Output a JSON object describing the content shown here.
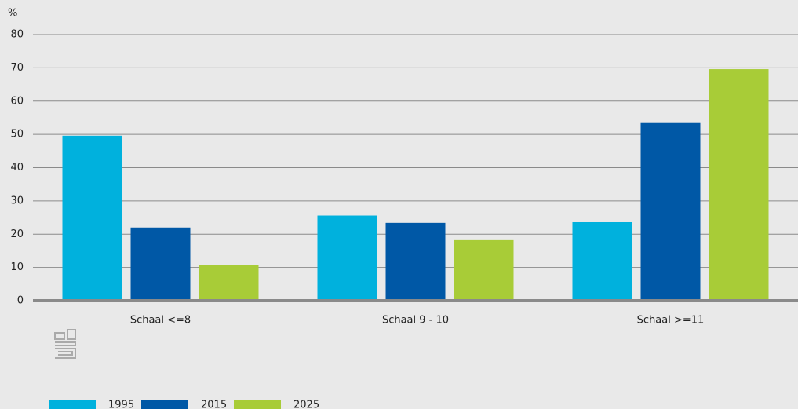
{
  "chart_data": {
    "type": "bar",
    "y_unit": "%",
    "categories": [
      "Schaal <=8",
      "Schaal 9 - 10",
      "Schaal >=11"
    ],
    "series": [
      {
        "name": "1995",
        "color": "#00b1dd",
        "values": [
          49.6,
          25.6,
          23.6
        ]
      },
      {
        "name": "2015",
        "color": "#0058a6",
        "values": [
          22,
          23.4,
          53.4
        ]
      },
      {
        "name": "2025",
        "color": "#a8cc37",
        "values": [
          10.8,
          18.2,
          69.6
        ]
      }
    ],
    "ylim": [
      0,
      80
    ],
    "yticks": [
      0,
      10,
      20,
      30,
      40,
      50,
      60,
      70,
      80
    ],
    "grid": true,
    "legend": "bottom-left"
  }
}
